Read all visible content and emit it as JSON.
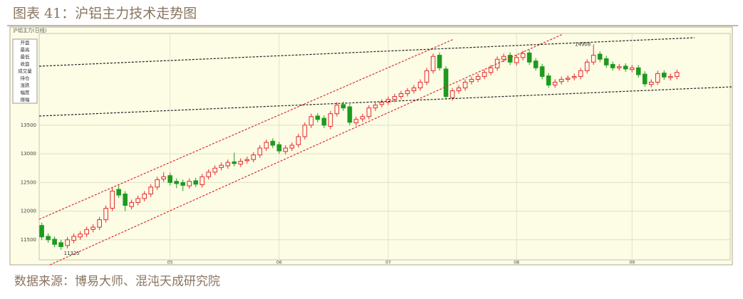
{
  "chart_data": {
    "type": "candlestick",
    "title": "图表 41：沪铝主力技术走势图",
    "source": "数据来源：博易大师、混沌天成研究院",
    "header": "沪铝主力(日线)",
    "info_panel": [
      "开盘",
      "最高",
      "最低",
      "收盘",
      "成交量",
      "持仓",
      "涨跌",
      "幅度",
      "振幅"
    ],
    "annotations": [
      {
        "text": "11325",
        "index": 3
      },
      {
        "text": "14908",
        "index": 86
      }
    ],
    "up_color": "#e8262a",
    "down_color": "#1e9a1e",
    "grid": true,
    "xlim": [
      -0.4,
      107.3
    ],
    "xticks": [
      {
        "value": 20,
        "label": "05"
      },
      {
        "value": 37,
        "label": "06"
      },
      {
        "value": 54,
        "label": "07"
      },
      {
        "value": 74,
        "label": "08"
      },
      {
        "value": 92,
        "label": "09"
      }
    ],
    "ylim": [
      11150,
      15100
    ],
    "yticks": [
      11500,
      12000,
      12500,
      13000,
      13500
    ],
    "open": [
      11750,
      11560,
      11510,
      11450,
      11400,
      11490,
      11550,
      11600,
      11680,
      11720,
      11850,
      12050,
      12380,
      12300,
      12080,
      12150,
      12220,
      12300,
      12420,
      12560,
      12620,
      12520,
      12500,
      12440,
      12530,
      12460,
      12600,
      12680,
      12760,
      12790,
      12860,
      12820,
      12880,
      12900,
      12980,
      13100,
      13220,
      13160,
      13040,
      13100,
      13160,
      13300,
      13500,
      13660,
      13620,
      13480,
      13700,
      13860,
      13820,
      13540,
      13610,
      13650,
      13800,
      13860,
      13900,
      13950,
      14000,
      14050,
      14100,
      14150,
      14250,
      14450,
      14720,
      14480,
      13980,
      14100,
      14150,
      14260,
      14300,
      14350,
      14420,
      14500,
      14650,
      14720,
      14590,
      14680,
      14760,
      14620,
      14520,
      14360,
      14200,
      14260,
      14300,
      14330,
      14350,
      14450,
      14600,
      14740,
      14660,
      14560,
      14500,
      14530,
      14470,
      14500,
      14390,
      14210,
      14250,
      14410,
      14330,
      14350
    ],
    "high": [
      11800,
      11610,
      11560,
      11500,
      11550,
      11610,
      11650,
      11730,
      11770,
      11900,
      12100,
      12420,
      12450,
      12350,
      12200,
      12270,
      12350,
      12470,
      12600,
      12680,
      12670,
      12570,
      12550,
      12570,
      12580,
      12650,
      12730,
      12800,
      12850,
      12900,
      13020,
      12920,
      12950,
      13030,
      13150,
      13250,
      13270,
      13210,
      13150,
      13200,
      13350,
      13550,
      13700,
      13710,
      13670,
      13750,
      13900,
      13910,
      13870,
      13650,
      13700,
      13850,
      13900,
      13950,
      14000,
      14050,
      14100,
      14150,
      14200,
      14300,
      14500,
      14750,
      14770,
      14530,
      14150,
      14200,
      14300,
      14350,
      14400,
      14470,
      14550,
      14700,
      14750,
      14770,
      14730,
      14800,
      14810,
      14670,
      14570,
      14410,
      14300,
      14350,
      14370,
      14400,
      14500,
      14650,
      14908,
      14790,
      14710,
      14610,
      14570,
      14580,
      14550,
      14550,
      14440,
      14300,
      14450,
      14460,
      14400,
      14470
    ],
    "low": [
      11500,
      11450,
      11370,
      11325,
      11350,
      11440,
      11500,
      11550,
      11630,
      11670,
      11800,
      12000,
      12230,
      12000,
      12030,
      12100,
      12170,
      12250,
      12370,
      12510,
      12450,
      12400,
      12350,
      12390,
      12420,
      12410,
      12550,
      12630,
      12710,
      12740,
      12780,
      12770,
      12830,
      12850,
      12930,
      13050,
      13100,
      13000,
      12990,
      13050,
      13110,
      13250,
      13450,
      13550,
      13450,
      13430,
      13650,
      13750,
      13500,
      13490,
      13560,
      13600,
      13750,
      13810,
      13850,
      13900,
      13950,
      14000,
      14050,
      14100,
      14200,
      14400,
      14450,
      13950,
      13930,
      14050,
      14100,
      14210,
      14250,
      14300,
      14370,
      14450,
      14600,
      14550,
      14540,
      14630,
      14550,
      14450,
      14300,
      14150,
      14150,
      14210,
      14250,
      14280,
      14300,
      14400,
      14550,
      14600,
      14500,
      14450,
      14450,
      14430,
      14420,
      14330,
      14170,
      14160,
      14200,
      14290,
      14280,
      14300
    ],
    "close": [
      11550,
      11500,
      11420,
      11380,
      11500,
      11560,
      11600,
      11680,
      11720,
      11850,
      12050,
      12350,
      12280,
      12100,
      12150,
      12220,
      12300,
      12420,
      12550,
      12600,
      12500,
      12480,
      12450,
      12520,
      12470,
      12600,
      12680,
      12750,
      12800,
      12850,
      12830,
      12870,
      12900,
      12980,
      13100,
      13200,
      13150,
      13050,
      13100,
      13150,
      13300,
      13500,
      13650,
      13600,
      13500,
      13700,
      13850,
      13800,
      13550,
      13600,
      13650,
      13800,
      13850,
      13900,
      13950,
      14000,
      14050,
      14100,
      14150,
      14250,
      14450,
      14700,
      14500,
      14000,
      14100,
      14150,
      14250,
      14300,
      14350,
      14420,
      14500,
      14650,
      14700,
      14600,
      14680,
      14750,
      14600,
      14500,
      14350,
      14200,
      14250,
      14300,
      14320,
      14350,
      14450,
      14600,
      14720,
      14650,
      14550,
      14500,
      14520,
      14480,
      14500,
      14380,
      14220,
      14250,
      14400,
      14340,
      14350,
      14420
    ]
  }
}
